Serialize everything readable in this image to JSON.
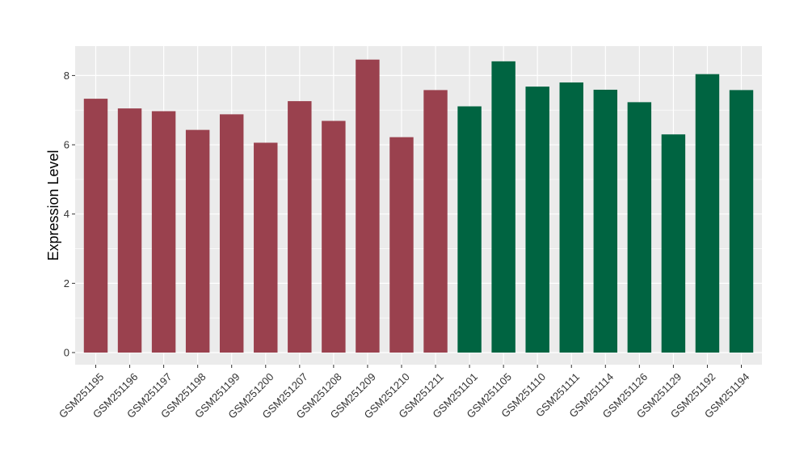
{
  "chart_data": {
    "type": "bar",
    "title": "",
    "xlabel": "",
    "ylabel": "Expression Level",
    "ylim": [
      -0.35,
      8.85
    ],
    "yticks": [
      0,
      2,
      4,
      6,
      8
    ],
    "grid": true,
    "legend": "none",
    "categories": [
      "GSM251195",
      "GSM251196",
      "GSM251197",
      "GSM251198",
      "GSM251199",
      "GSM251200",
      "GSM251207",
      "GSM251208",
      "GSM251209",
      "GSM251210",
      "GSM251211",
      "GSM251101",
      "GSM251105",
      "GSM251110",
      "GSM251111",
      "GSM251114",
      "GSM251126",
      "GSM251129",
      "GSM251192",
      "GSM251194"
    ],
    "values": [
      7.33,
      7.05,
      6.97,
      6.43,
      6.88,
      6.06,
      7.26,
      6.69,
      8.46,
      6.22,
      7.58,
      7.11,
      8.41,
      7.68,
      7.8,
      7.59,
      7.23,
      6.3,
      8.04,
      7.58
    ],
    "groups": [
      0,
      0,
      0,
      0,
      0,
      0,
      0,
      0,
      0,
      0,
      0,
      1,
      1,
      1,
      1,
      1,
      1,
      1,
      1,
      1
    ],
    "colors": [
      "#9a414e",
      "#006441"
    ],
    "panel_background": "#ebebeb",
    "grid_color": "#ffffff"
  }
}
